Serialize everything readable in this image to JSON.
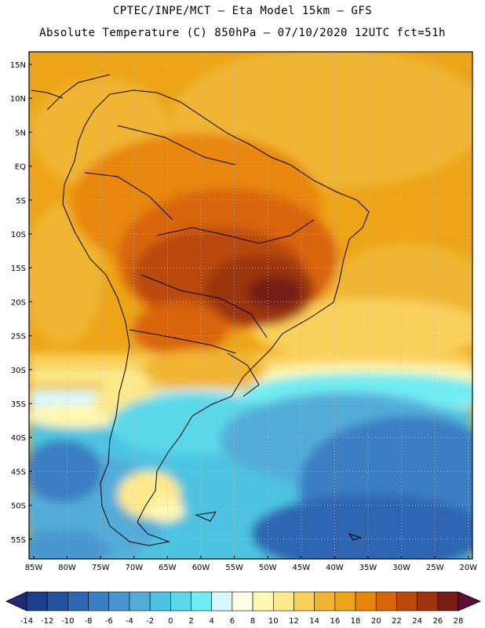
{
  "header": {
    "title_line1": "CPTEC/INPE/MCT —  Eta Model 15km — GFS",
    "title_line2": "Absolute Temperature (C) 850hPa — 07/10/2020 12UTC fct=51h"
  },
  "map": {
    "lat_labels": [
      "15N",
      "10N",
      "5N",
      "EQ",
      "5S",
      "10S",
      "15S",
      "20S",
      "25S",
      "30S",
      "35S",
      "40S",
      "45S",
      "50S",
      "55S"
    ],
    "lon_labels": [
      "85W",
      "80W",
      "75W",
      "70W",
      "65W",
      "60W",
      "55W",
      "50W",
      "45W",
      "40W",
      "35W",
      "30W",
      "25W",
      "20W"
    ]
  },
  "legend": {
    "labels": [
      "-14",
      "-12",
      "-10",
      "-8",
      "-6",
      "-4",
      "-2",
      "0",
      "2",
      "4",
      "6",
      "8",
      "10",
      "12",
      "14",
      "16",
      "18",
      "20",
      "22",
      "24",
      "26",
      "28"
    ],
    "colors": [
      "#1c3f8a",
      "#2451a0",
      "#2e66b3",
      "#3a7ec4",
      "#4a96cf",
      "#52acd8",
      "#4ec3e1",
      "#5ad8ea",
      "#6fecf2",
      "#d8f6fb",
      "#fffbe6",
      "#fff7b0",
      "#fde98a",
      "#f9d05c",
      "#f0b532",
      "#eda416",
      "#e8860a",
      "#d8650a",
      "#b94a0c",
      "#9b340f",
      "#761c12"
    ],
    "end_left_color": "#1e2a72",
    "end_right_color": "#5e0c3c"
  }
}
